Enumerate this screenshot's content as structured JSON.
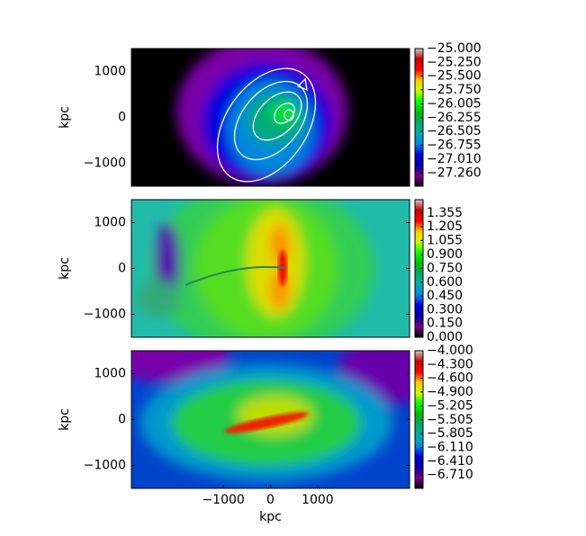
{
  "chart_data": [
    {
      "type": "heatmap",
      "ylabel": "kpc",
      "colormap": "nipy_spectral",
      "xlim": [
        -2950,
        2950
      ],
      "ylim": [
        -1500,
        1500
      ],
      "yticks": [
        {
          "value": 1000,
          "label": "1000"
        },
        0,
        {
          "value": -1000,
          "label": "−1000"
        }
      ],
      "clim": [
        -27.5,
        -25
      ],
      "cticks": [
        {
          "value": -25,
          "label": "−25.000"
        },
        {
          "value": -25.25,
          "label": "−25.250"
        },
        {
          "value": -25.5,
          "label": "−25.500"
        },
        {
          "value": -25.75,
          "label": "−25.750"
        },
        {
          "value": -26.005,
          "label": "−26.005"
        },
        {
          "value": -26.255,
          "label": "−26.255"
        },
        {
          "value": -26.505,
          "label": "−26.505"
        },
        {
          "value": -26.755,
          "label": "−26.755"
        },
        {
          "value": -27.01,
          "label": "−27.010"
        },
        {
          "value": -27.26,
          "label": "−27.260"
        }
      ]
    },
    {
      "type": "heatmap",
      "ylabel": "kpc",
      "colormap": "nipy_spectral",
      "xlim": [
        -2950,
        2950
      ],
      "ylim": [
        -1500,
        1500
      ],
      "yticks": [
        {
          "value": 1000,
          "label": "1000"
        },
        0,
        {
          "value": -1000,
          "label": "−1000"
        }
      ],
      "clim": [
        0,
        1.5
      ],
      "cticks": [
        1.355,
        1.205,
        1.055,
        {
          "value": 0.9,
          "label": "0.900"
        },
        {
          "value": 0.75,
          "label": "0.750"
        },
        {
          "value": 0.6,
          "label": "0.600"
        },
        {
          "value": 0.45,
          "label": "0.450"
        },
        {
          "value": 0.3,
          "label": "0.300"
        },
        {
          "value": 0.15,
          "label": "0.150"
        },
        {
          "value": 0,
          "label": "0.000"
        }
      ]
    },
    {
      "type": "heatmap",
      "ylabel": "kpc",
      "xlabel": "kpc",
      "colormap": "nipy_spectral",
      "xlim": [
        -2950,
        2950
      ],
      "ylim": [
        -1500,
        1500
      ],
      "xticks": [
        {
          "value": -1000,
          "label": "−1000"
        },
        0,
        1000
      ],
      "yticks": [
        {
          "value": 1000,
          "label": "1000"
        },
        0,
        {
          "value": -1000,
          "label": "−1000"
        }
      ],
      "clim": [
        -7,
        -4
      ],
      "cticks": [
        {
          "value": -4,
          "label": "−4.000"
        },
        {
          "value": -4.3,
          "label": "−4.300"
        },
        {
          "value": -4.6,
          "label": "−4.600"
        },
        {
          "value": -4.9,
          "label": "−4.900"
        },
        {
          "value": -5.205,
          "label": "−5.205"
        },
        {
          "value": -5.505,
          "label": "−5.505"
        },
        {
          "value": -5.805,
          "label": "−5.805"
        },
        {
          "value": -6.11,
          "label": "−6.110"
        },
        {
          "value": -6.41,
          "label": "−6.410"
        },
        {
          "value": -6.71,
          "label": "−6.710"
        }
      ]
    }
  ]
}
